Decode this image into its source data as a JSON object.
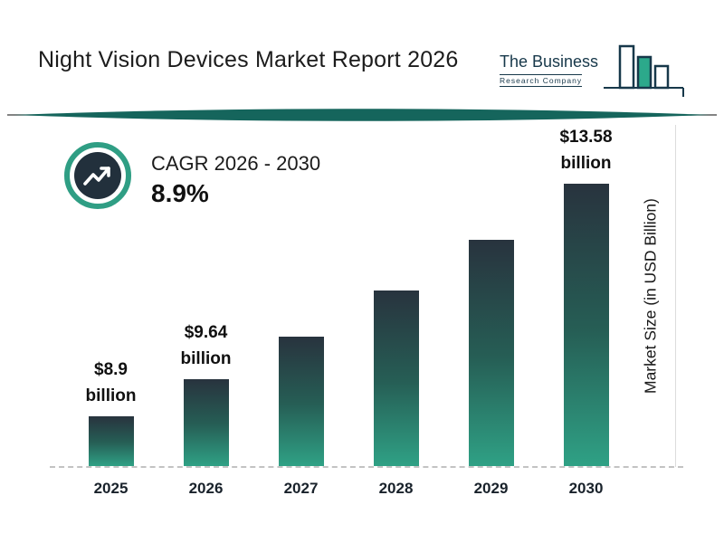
{
  "header": {
    "title": "Night Vision Devices Market Report 2026",
    "logo": {
      "name": "The Business",
      "subname": "Research Company"
    }
  },
  "cagr": {
    "label": "CAGR 2026 - 2030",
    "value": "8.9%"
  },
  "chart_data": {
    "type": "bar",
    "title": "Night Vision Devices Market Report 2026",
    "categories": [
      "2025",
      "2026",
      "2027",
      "2028",
      "2029",
      "2030"
    ],
    "values": [
      8.9,
      9.64,
      10.5,
      11.43,
      12.45,
      13.58
    ],
    "labeled_points": [
      {
        "category": "2025",
        "label_value": "$8.9",
        "label_unit": "billion"
      },
      {
        "category": "2026",
        "label_value": "$9.64",
        "label_unit": "billion"
      },
      {
        "category": "2030",
        "label_value": "$13.58",
        "label_unit": "billion"
      }
    ],
    "xlabel": "",
    "ylabel": "Market Size (in USD Billion)",
    "ylim": [
      7.9,
      13.58
    ],
    "grid": false,
    "legend": "none",
    "colors": {
      "bar_top": "#28333e",
      "bar_bottom": "#2fa185",
      "accent_teal": "#15655c",
      "icon_ring": "#2f9e84",
      "icon_fill": "#22303c"
    }
  }
}
